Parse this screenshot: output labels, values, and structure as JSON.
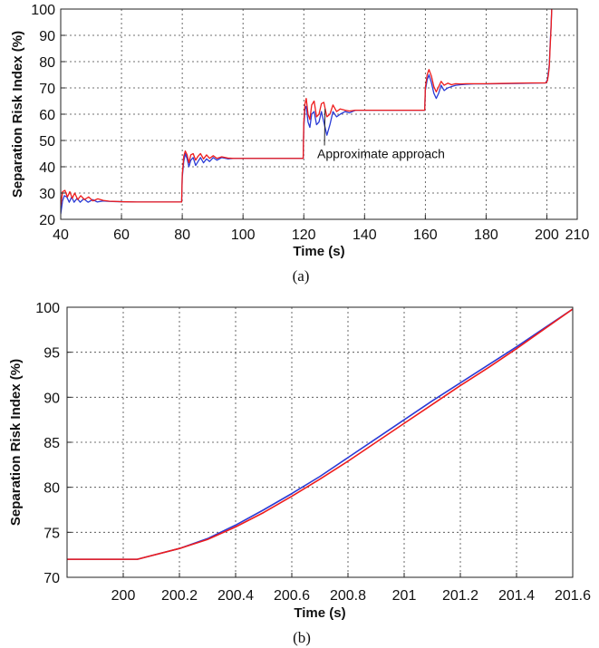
{
  "chart_data": [
    {
      "id": "a",
      "type": "line",
      "caption": "(a)",
      "xlabel": "Time (s)",
      "ylabel": "Separation Risk Index (%)",
      "xlim": [
        40,
        210
      ],
      "ylim": [
        20,
        100
      ],
      "xticks": [
        40,
        60,
        80,
        100,
        120,
        140,
        160,
        180,
        200,
        210
      ],
      "yticks": [
        20,
        30,
        40,
        50,
        60,
        70,
        80,
        90,
        100
      ],
      "grid": true,
      "annotations": [
        {
          "text": "Approximate approach",
          "x": 128,
          "y": 45,
          "arrow_to": [
            127,
            62
          ]
        }
      ],
      "series": [
        {
          "color": "#2a3bd6",
          "x": [
            40,
            40.6,
            41.2,
            42,
            42.8,
            43.6,
            44.4,
            45.4,
            46.4,
            47.6,
            49,
            50.5,
            52,
            54,
            56,
            60,
            65,
            70,
            75,
            79.8,
            80,
            80.5,
            81,
            81.6,
            82.2,
            82.8,
            83.6,
            84.4,
            85.2,
            86,
            87,
            88,
            89,
            90.2,
            91.4,
            93,
            95,
            97,
            100,
            110,
            119.8,
            120,
            120.4,
            120.8,
            121.4,
            122,
            122.6,
            123.4,
            124.2,
            125,
            125.8,
            126.6,
            127.6,
            128.6,
            129.6,
            130.8,
            132,
            133.6,
            135,
            137,
            140,
            145,
            150,
            155,
            159.8,
            160,
            160.6,
            161.2,
            162,
            162.8,
            163.6,
            164.4,
            165.2,
            166.2,
            167.4,
            168.6,
            170,
            171.6,
            173.5,
            176,
            180,
            185,
            190,
            195,
            199.6,
            199.9,
            200.2,
            200.5,
            200.8,
            201.1,
            201.4,
            201.6
          ],
          "y": [
            22,
            27,
            29,
            28.5,
            26.5,
            28.5,
            26.5,
            28,
            26.5,
            27.8,
            26.5,
            27.5,
            26.6,
            27,
            26.8,
            26.7,
            26.6,
            26.6,
            26.6,
            26.6,
            36,
            42,
            45,
            43,
            40,
            42.5,
            43.5,
            40.5,
            42,
            43.5,
            41.5,
            43,
            42,
            43.5,
            42.5,
            43.5,
            43,
            43.2,
            43.2,
            43.2,
            43.2,
            55,
            62,
            63,
            57,
            55,
            60,
            61,
            56,
            57,
            61,
            57,
            52,
            56,
            61,
            59,
            60,
            61,
            60.5,
            61.5,
            61.5,
            61.5,
            61.5,
            61.5,
            61.5,
            69,
            73,
            75,
            72,
            68,
            66,
            68,
            71,
            69,
            70,
            70.5,
            71,
            71.2,
            71.4,
            71.5,
            71.5,
            71.6,
            71.7,
            71.8,
            71.9,
            72.5,
            73.2,
            76,
            79,
            87,
            94,
            100
          ]
        },
        {
          "color": "#ee1c1c",
          "x": [
            40,
            40.6,
            41.4,
            42.2,
            43,
            43.8,
            44.6,
            45.6,
            46.6,
            47.8,
            49.2,
            50.6,
            52.2,
            54,
            56,
            60,
            65,
            70,
            75,
            79.8,
            80,
            80.5,
            81,
            81.6,
            82.2,
            82.8,
            83.6,
            84.4,
            85.2,
            86,
            87,
            88,
            89,
            90.2,
            91.4,
            93,
            95,
            97,
            100,
            110,
            119.8,
            120,
            120.4,
            120.8,
            121.4,
            122,
            122.6,
            123.4,
            124.2,
            125,
            125.8,
            126.6,
            127.6,
            128.6,
            129.6,
            130.8,
            132,
            133.6,
            135,
            137,
            140,
            145,
            150,
            155,
            159.8,
            160,
            160.6,
            161.2,
            162,
            162.8,
            163.6,
            164.4,
            165.2,
            166.2,
            167.4,
            168.6,
            170,
            171.6,
            173.5,
            176,
            180,
            185,
            190,
            195,
            199.6,
            199.9,
            200.2,
            200.5,
            200.8,
            201.1,
            201.4,
            201.6
          ],
          "y": [
            25,
            30.5,
            31,
            28.5,
            30.5,
            28,
            30,
            27.5,
            29,
            27.5,
            28.5,
            27,
            27.8,
            27.2,
            26.9,
            26.7,
            26.6,
            26.6,
            26.6,
            26.6,
            37,
            44,
            46,
            44.5,
            41.5,
            44.5,
            45,
            42.5,
            44,
            45,
            43,
            44.5,
            43.2,
            44.2,
            43.2,
            43.8,
            43.3,
            43.2,
            43.2,
            43.2,
            43.2,
            57,
            64,
            66,
            60,
            58,
            63.5,
            65,
            59,
            60,
            64,
            64.5,
            59,
            60,
            63.5,
            61,
            62,
            61.5,
            61.2,
            61.5,
            61.5,
            61.5,
            61.5,
            61.5,
            61.5,
            70,
            75,
            77,
            74.5,
            70.5,
            68.5,
            70.5,
            72.5,
            71,
            71.8,
            71.2,
            71.6,
            71.5,
            71.6,
            71.6,
            71.6,
            71.7,
            71.8,
            71.9,
            71.9,
            72.2,
            72.8,
            75,
            78,
            86,
            93,
            100
          ]
        }
      ]
    },
    {
      "id": "b",
      "type": "line",
      "caption": "(b)",
      "xlabel": "Time (s)",
      "ylabel": "Separation Risk Index (%)",
      "xlim": [
        199.8,
        201.6
      ],
      "ylim": [
        70,
        100
      ],
      "xticks": [
        200,
        200.2,
        200.4,
        200.6,
        200.8,
        201,
        201.2,
        201.4,
        201.6
      ],
      "yticks": [
        70,
        75,
        80,
        85,
        90,
        95,
        100
      ],
      "grid": true,
      "series": [
        {
          "color": "#2a3bd6",
          "x": [
            199.8,
            200.05,
            200.1,
            200.2,
            200.3,
            200.4,
            200.5,
            200.6,
            200.7,
            200.8,
            200.9,
            201.0,
            201.1,
            201.2,
            201.3,
            201.4,
            201.5,
            201.6
          ],
          "y": [
            72,
            72,
            72.4,
            73.2,
            74.3,
            75.8,
            77.5,
            79.3,
            81.2,
            83.3,
            85.4,
            87.5,
            89.6,
            91.6,
            93.6,
            95.6,
            97.7,
            99.8
          ]
        },
        {
          "color": "#ee1c1c",
          "x": [
            199.8,
            200.05,
            200.1,
            200.2,
            200.3,
            200.4,
            200.5,
            200.6,
            200.7,
            200.8,
            200.9,
            201.0,
            201.1,
            201.2,
            201.3,
            201.4,
            201.5,
            201.6
          ],
          "y": [
            72,
            72,
            72.4,
            73.2,
            74.2,
            75.6,
            77.2,
            79.0,
            80.9,
            82.9,
            85.0,
            87.1,
            89.2,
            91.3,
            93.3,
            95.4,
            97.6,
            99.8
          ]
        }
      ]
    }
  ]
}
